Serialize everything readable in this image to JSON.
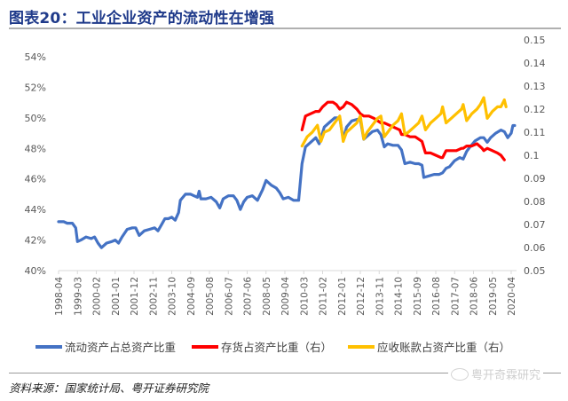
{
  "header": {
    "title": "图表20：工业企业资产的流动性在增强"
  },
  "chart_data": {
    "type": "line",
    "title": "图表20：工业企业资产的流动性在增强",
    "xlabel": "",
    "ylabel_left": "",
    "ylabel_right": "",
    "x_tick_labels": [
      "1998-04",
      "1999-03",
      "2000-02",
      "2001-01",
      "2001-12",
      "2002-11",
      "2003-10",
      "2004-09",
      "2005-08",
      "2006-07",
      "2007-06",
      "2008-05",
      "2009-04",
      "2010-03",
      "2011-02",
      "2012-01",
      "2012-12",
      "2013-11",
      "2014-10",
      "2015-09",
      "2016-08",
      "2017-07",
      "2018-06",
      "2019-05",
      "2020-04"
    ],
    "x_range": [
      "1998-04",
      "2020-06"
    ],
    "ylim_left": [
      0.4,
      0.54
    ],
    "left_tick_labels": [
      "40%",
      "42%",
      "44%",
      "46%",
      "48%",
      "50%",
      "52%",
      "54%"
    ],
    "ylim_right": [
      0.05,
      0.15
    ],
    "right_tick_labels": [
      "0.05",
      "0.06",
      "0.07",
      "0.08",
      "0.09",
      "0.1",
      "0.11",
      "0.12",
      "0.13",
      "0.14",
      "0.15"
    ],
    "grid": false,
    "legend_position": "bottom",
    "series": [
      {
        "name": "流动资产占总资产比重",
        "axis": "left",
        "color": "#4472C4",
        "points": [
          [
            "1998-04",
            0.432
          ],
          [
            "1998-07",
            0.432
          ],
          [
            "1998-09",
            0.431
          ],
          [
            "1998-12",
            0.431
          ],
          [
            "1999-02",
            0.428
          ],
          [
            "1999-03",
            0.419
          ],
          [
            "1999-05",
            0.42
          ],
          [
            "1999-08",
            0.422
          ],
          [
            "1999-11",
            0.421
          ],
          [
            "2000-01",
            0.422
          ],
          [
            "2000-03",
            0.418
          ],
          [
            "2000-05",
            0.415
          ],
          [
            "2000-08",
            0.418
          ],
          [
            "2000-11",
            0.419
          ],
          [
            "2001-01",
            0.42
          ],
          [
            "2001-03",
            0.418
          ],
          [
            "2001-05",
            0.422
          ],
          [
            "2001-08",
            0.427
          ],
          [
            "2001-11",
            0.428
          ],
          [
            "2002-01",
            0.428
          ],
          [
            "2002-03",
            0.423
          ],
          [
            "2002-06",
            0.426
          ],
          [
            "2002-09",
            0.427
          ],
          [
            "2002-12",
            0.428
          ],
          [
            "2003-02",
            0.426
          ],
          [
            "2003-04",
            0.43
          ],
          [
            "2003-06",
            0.434
          ],
          [
            "2003-08",
            0.434
          ],
          [
            "2003-10",
            0.435
          ],
          [
            "2003-12",
            0.433
          ],
          [
            "2004-02",
            0.438
          ],
          [
            "2004-03",
            0.446
          ],
          [
            "2004-06",
            0.45
          ],
          [
            "2004-09",
            0.45
          ],
          [
            "2004-11",
            0.449
          ],
          [
            "2005-01",
            0.448
          ],
          [
            "2005-02",
            0.452
          ],
          [
            "2005-03",
            0.447
          ],
          [
            "2005-06",
            0.447
          ],
          [
            "2005-09",
            0.448
          ],
          [
            "2005-12",
            0.445
          ],
          [
            "2006-02",
            0.441
          ],
          [
            "2006-04",
            0.447
          ],
          [
            "2006-07",
            0.449
          ],
          [
            "2006-10",
            0.449
          ],
          [
            "2006-12",
            0.446
          ],
          [
            "2007-02",
            0.44
          ],
          [
            "2007-04",
            0.445
          ],
          [
            "2007-06",
            0.448
          ],
          [
            "2007-09",
            0.449
          ],
          [
            "2007-12",
            0.446
          ],
          [
            "2008-03",
            0.453
          ],
          [
            "2008-05",
            0.459
          ],
          [
            "2008-08",
            0.456
          ],
          [
            "2008-11",
            0.454
          ],
          [
            "2009-01",
            0.451
          ],
          [
            "2009-03",
            0.447
          ],
          [
            "2009-06",
            0.448
          ],
          [
            "2009-09",
            0.446
          ],
          [
            "2009-12",
            0.446
          ],
          [
            "2010-02",
            0.47
          ],
          [
            "2010-04",
            0.481
          ],
          [
            "2010-07",
            0.484
          ],
          [
            "2010-10",
            0.487
          ],
          [
            "2010-12",
            0.483
          ],
          [
            "2011-03",
            0.494
          ],
          [
            "2011-06",
            0.497
          ],
          [
            "2011-09",
            0.5
          ],
          [
            "2011-12",
            0.5
          ],
          [
            "2012-02",
            0.486
          ],
          [
            "2012-04",
            0.494
          ],
          [
            "2012-07",
            0.498
          ],
          [
            "2012-10",
            0.499
          ],
          [
            "2012-12",
            0.499
          ],
          [
            "2013-02",
            0.486
          ],
          [
            "2013-04",
            0.488
          ],
          [
            "2013-07",
            0.491
          ],
          [
            "2013-10",
            0.492
          ],
          [
            "2013-12",
            0.489
          ],
          [
            "2014-02",
            0.481
          ],
          [
            "2014-04",
            0.483
          ],
          [
            "2014-07",
            0.482
          ],
          [
            "2014-10",
            0.482
          ],
          [
            "2014-12",
            0.479
          ],
          [
            "2015-02",
            0.47
          ],
          [
            "2015-05",
            0.471
          ],
          [
            "2015-08",
            0.47
          ],
          [
            "2015-10",
            0.47
          ],
          [
            "2015-12",
            0.469
          ],
          [
            "2016-01",
            0.461
          ],
          [
            "2016-04",
            0.462
          ],
          [
            "2016-07",
            0.463
          ],
          [
            "2016-10",
            0.463
          ],
          [
            "2016-12",
            0.464
          ],
          [
            "2017-02",
            0.467
          ],
          [
            "2017-04",
            0.468
          ],
          [
            "2017-07",
            0.472
          ],
          [
            "2017-10",
            0.474
          ],
          [
            "2017-12",
            0.473
          ],
          [
            "2018-02",
            0.478
          ],
          [
            "2018-04",
            0.481
          ],
          [
            "2018-07",
            0.485
          ],
          [
            "2018-10",
            0.487
          ],
          [
            "2018-12",
            0.487
          ],
          [
            "2019-02",
            0.484
          ],
          [
            "2019-04",
            0.487
          ],
          [
            "2019-07",
            0.49
          ],
          [
            "2019-10",
            0.492
          ],
          [
            "2019-12",
            0.491
          ],
          [
            "2020-02",
            0.487
          ],
          [
            "2020-04",
            0.49
          ],
          [
            "2020-05",
            0.495
          ],
          [
            "2020-06",
            0.495
          ]
        ]
      },
      {
        "name": "存货占资产比重（右）",
        "axis": "right",
        "color": "#FF0000",
        "points": [
          [
            "2010-02",
            0.111
          ],
          [
            "2010-04",
            0.117
          ],
          [
            "2010-07",
            0.118
          ],
          [
            "2010-10",
            0.119
          ],
          [
            "2010-12",
            0.119
          ],
          [
            "2011-02",
            0.121
          ],
          [
            "2011-05",
            0.123
          ],
          [
            "2011-08",
            0.123
          ],
          [
            "2011-10",
            0.122
          ],
          [
            "2011-12",
            0.12
          ],
          [
            "2012-02",
            0.121
          ],
          [
            "2012-04",
            0.123
          ],
          [
            "2012-07",
            0.122
          ],
          [
            "2012-10",
            0.12
          ],
          [
            "2012-12",
            0.118
          ],
          [
            "2013-02",
            0.117
          ],
          [
            "2013-05",
            0.117
          ],
          [
            "2013-08",
            0.116
          ],
          [
            "2013-10",
            0.115
          ],
          [
            "2013-12",
            0.114
          ],
          [
            "2014-02",
            0.114
          ],
          [
            "2014-05",
            0.113
          ],
          [
            "2014-08",
            0.112
          ],
          [
            "2014-11",
            0.111
          ],
          [
            "2014-12",
            0.109
          ],
          [
            "2015-02",
            0.109
          ],
          [
            "2015-05",
            0.108
          ],
          [
            "2015-08",
            0.108
          ],
          [
            "2015-10",
            0.107
          ],
          [
            "2015-12",
            0.106
          ],
          [
            "2016-02",
            0.101
          ],
          [
            "2016-05",
            0.101
          ],
          [
            "2016-08",
            0.1
          ],
          [
            "2016-11",
            0.099
          ],
          [
            "2016-12",
            0.099
          ],
          [
            "2017-02",
            0.102
          ],
          [
            "2017-05",
            0.102
          ],
          [
            "2017-08",
            0.102
          ],
          [
            "2017-11",
            0.103
          ],
          [
            "2017-12",
            0.103
          ],
          [
            "2018-02",
            0.104
          ],
          [
            "2018-05",
            0.104
          ],
          [
            "2018-08",
            0.105
          ],
          [
            "2018-11",
            0.103
          ],
          [
            "2018-12",
            0.102
          ],
          [
            "2019-02",
            0.103
          ],
          [
            "2019-05",
            0.102
          ],
          [
            "2019-08",
            0.101
          ],
          [
            "2019-10",
            0.1
          ],
          [
            "2019-12",
            0.098
          ]
        ]
      },
      {
        "name": "应收账款占资产比重（右）",
        "axis": "right",
        "color": "#FFC000",
        "points": [
          [
            "2010-02",
            0.104
          ],
          [
            "2010-05",
            0.108
          ],
          [
            "2010-08",
            0.11
          ],
          [
            "2010-11",
            0.113
          ],
          [
            "2011-01",
            0.106
          ],
          [
            "2011-03",
            0.11
          ],
          [
            "2011-06",
            0.111
          ],
          [
            "2011-09",
            0.114
          ],
          [
            "2011-12",
            0.117
          ],
          [
            "2012-02",
            0.106
          ],
          [
            "2012-04",
            0.11
          ],
          [
            "2012-07",
            0.112
          ],
          [
            "2012-10",
            0.114
          ],
          [
            "2012-12",
            0.117
          ],
          [
            "2013-02",
            0.107
          ],
          [
            "2013-04",
            0.11
          ],
          [
            "2013-07",
            0.113
          ],
          [
            "2013-10",
            0.116
          ],
          [
            "2013-12",
            0.117
          ],
          [
            "2014-02",
            0.108
          ],
          [
            "2014-04",
            0.11
          ],
          [
            "2014-07",
            0.113
          ],
          [
            "2014-10",
            0.115
          ],
          [
            "2014-12",
            0.118
          ],
          [
            "2015-02",
            0.109
          ],
          [
            "2015-04",
            0.11
          ],
          [
            "2015-07",
            0.112
          ],
          [
            "2015-10",
            0.114
          ],
          [
            "2015-12",
            0.117
          ],
          [
            "2016-02",
            0.111
          ],
          [
            "2016-05",
            0.114
          ],
          [
            "2016-08",
            0.116
          ],
          [
            "2016-11",
            0.118
          ],
          [
            "2016-12",
            0.121
          ],
          [
            "2017-02",
            0.114
          ],
          [
            "2017-05",
            0.116
          ],
          [
            "2017-08",
            0.118
          ],
          [
            "2017-11",
            0.12
          ],
          [
            "2017-12",
            0.122
          ],
          [
            "2018-02",
            0.115
          ],
          [
            "2018-05",
            0.118
          ],
          [
            "2018-08",
            0.12
          ],
          [
            "2018-10",
            0.122
          ],
          [
            "2018-12",
            0.125
          ],
          [
            "2019-02",
            0.116
          ],
          [
            "2019-05",
            0.119
          ],
          [
            "2019-08",
            0.121
          ],
          [
            "2019-10",
            0.121
          ],
          [
            "2019-12",
            0.124
          ],
          [
            "2020-01",
            0.121
          ]
        ]
      }
    ]
  },
  "legend": {
    "items": [
      {
        "label": "流动资产占总资产比重",
        "color": "#4472C4"
      },
      {
        "label": "存货占资产比重（右）",
        "color": "#FF0000"
      },
      {
        "label": "应收账款占资产比重（右）",
        "color": "#FFC000"
      }
    ]
  },
  "footer": {
    "source": "资料来源：国家统计局、粤开证券研究院",
    "watermark": "粤开奇霖研究"
  },
  "colors": {
    "title": "#1F3A8A",
    "axis_text": "#595959",
    "axis_line": "#D9D9D9"
  }
}
